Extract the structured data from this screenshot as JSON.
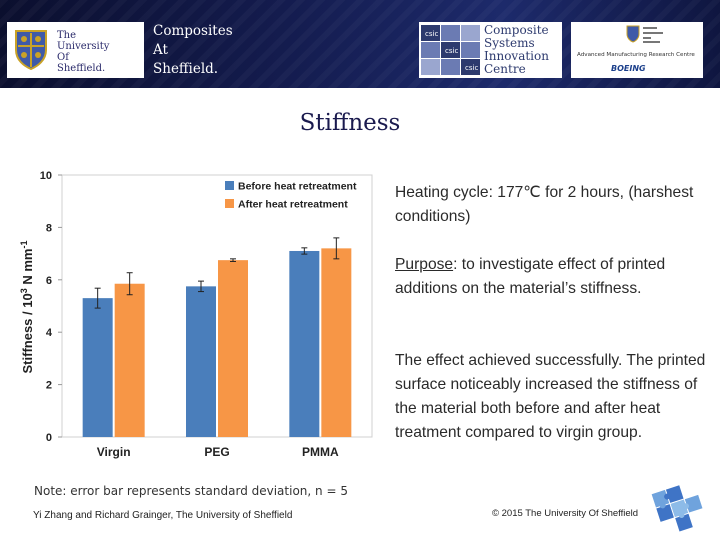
{
  "header": {
    "university_logo_lines": [
      "The",
      "University",
      "Of",
      "Sheffield."
    ],
    "title_lines": [
      "Composites",
      "At",
      "Sheffield."
    ],
    "csic_tile_label": "csic",
    "csic_lines": [
      "Composite",
      "Systems",
      "Innovation",
      "Centre"
    ],
    "amrc_caption": "Advanced Manufacturing Research Centre",
    "boeing_label": "BOEING",
    "colors": {
      "navy": "#141c4f",
      "gold": "#c9a227",
      "crest_blue": "#3f5aa8"
    }
  },
  "slide_title": "Stiffness",
  "chart_data": {
    "type": "bar",
    "categories": [
      "Virgin",
      "PEG",
      "PMMA"
    ],
    "series": [
      {
        "name": "Before heat retreatment",
        "color": "#4a7ebb",
        "values": [
          5.3,
          5.75,
          7.1
        ],
        "errors": [
          0.38,
          0.2,
          0.12
        ]
      },
      {
        "name": "After heat retreatment",
        "color": "#f79646",
        "values": [
          5.85,
          6.75,
          7.2
        ],
        "errors": [
          0.42,
          0.05,
          0.4
        ]
      }
    ],
    "title": "",
    "xlabel": "",
    "ylabel_prefix": "Stiffness / 10",
    "ylabel_sup1": "3",
    "ylabel_mid": " N mm",
    "ylabel_sup2": "-1",
    "ylim": [
      0,
      10
    ],
    "yticks": [
      "0",
      "2",
      "4",
      "6",
      "8",
      "10"
    ],
    "legend_position": "top-right",
    "grid": false
  },
  "body": {
    "para1": "Heating cycle: 177℃ for 2 hours, (harshest conditions)",
    "purpose_label": "Purpose",
    "para2_rest": ": to investigate effect of printed additions on the material’s stiffness.",
    "para3": "The effect achieved successfully. The printed surface noticeably increased the stiffness of the material both before and after heat treatment compared to virgin group."
  },
  "footer": {
    "note": "Note: error bar represents standard deviation, n = 5",
    "authors": "Yi Zhang and Richard Grainger, The University of Sheffield",
    "copyright": "© 2015 The University Of Sheffield"
  }
}
